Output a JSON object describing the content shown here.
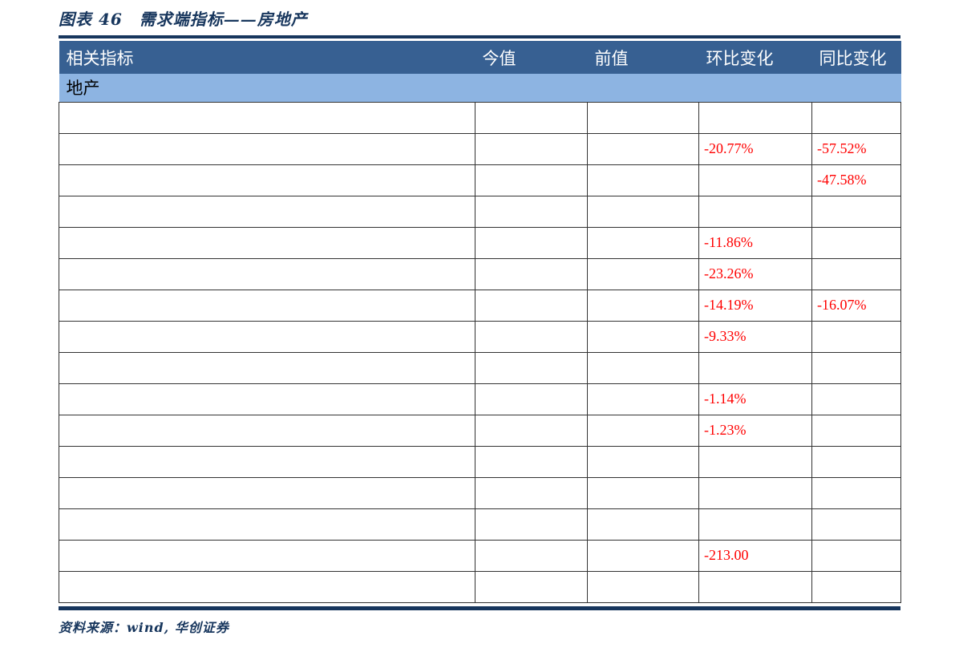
{
  "figure": {
    "title": "图表 46　需求端指标——房地产",
    "source_note": "资料来源：wind, 华创证券"
  },
  "table": {
    "headers": [
      "相关指标",
      "今值",
      "前值",
      "环比变化",
      "同比变化"
    ],
    "section_label": "地产",
    "rows": [
      {
        "indicator": "",
        "current": "",
        "previous": "",
        "mom": "",
        "yoy": ""
      },
      {
        "indicator": "",
        "current": "",
        "previous": "",
        "mom": "-20.77%",
        "yoy": "-57.52%"
      },
      {
        "indicator": "",
        "current": "",
        "previous": "",
        "mom": "",
        "yoy": "-47.58%"
      },
      {
        "indicator": "",
        "current": "",
        "previous": "",
        "mom": "",
        "yoy": ""
      },
      {
        "indicator": "",
        "current": "",
        "previous": "",
        "mom": "-11.86%",
        "yoy": ""
      },
      {
        "indicator": "",
        "current": "",
        "previous": "",
        "mom": "-23.26%",
        "yoy": ""
      },
      {
        "indicator": "",
        "current": "",
        "previous": "",
        "mom": "-14.19%",
        "yoy": "-16.07%"
      },
      {
        "indicator": "",
        "current": "",
        "previous": "",
        "mom": "-9.33%",
        "yoy": ""
      },
      {
        "indicator": "",
        "current": "",
        "previous": "",
        "mom": "",
        "yoy": ""
      },
      {
        "indicator": "",
        "current": "",
        "previous": "",
        "mom": "-1.14%",
        "yoy": ""
      },
      {
        "indicator": "",
        "current": "",
        "previous": "",
        "mom": "-1.23%",
        "yoy": ""
      },
      {
        "indicator": "",
        "current": "",
        "previous": "",
        "mom": "",
        "yoy": ""
      },
      {
        "indicator": "",
        "current": "",
        "previous": "",
        "mom": "",
        "yoy": ""
      },
      {
        "indicator": "",
        "current": "",
        "previous": "",
        "mom": "",
        "yoy": ""
      },
      {
        "indicator": "",
        "current": "",
        "previous": "",
        "mom": "-213.00",
        "yoy": ""
      },
      {
        "indicator": "",
        "current": "",
        "previous": "",
        "mom": "",
        "yoy": ""
      }
    ]
  },
  "colors": {
    "header_bg": "#376092",
    "section_bg": "#8DB4E2",
    "accent_navy": "#17365D",
    "negative_red": "#FF0000",
    "grid_line": "#333333"
  }
}
